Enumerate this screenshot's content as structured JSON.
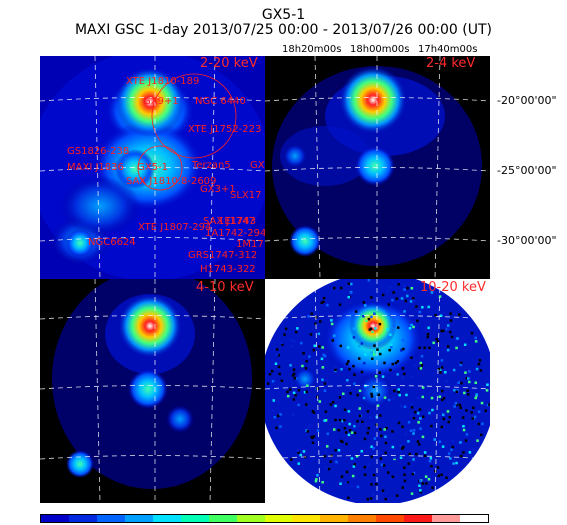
{
  "header": {
    "title": "GX5-1",
    "subtitle": "MAXI GSC 1-day 2013/07/25 00:00 - 2013/07/26 00:00 (UT)"
  },
  "axes": {
    "ra_labels": [
      "18h20m00s",
      "18h00m00s",
      "17h40m00s"
    ],
    "dec_labels": [
      "-20°00'00\"",
      "-25°00'00\"",
      "-30°00'00\""
    ]
  },
  "panels": [
    {
      "band": "2-20 keV"
    },
    {
      "band": "2-4 keV"
    },
    {
      "band": "4-10 keV"
    },
    {
      "band": "10-20 keV"
    }
  ],
  "sources": [
    "XTE J1810-189",
    "GX9+1",
    "NGC 6440",
    "XTE J1752-223",
    "GS1826-238",
    "MAXI J1836",
    "GX5-1",
    "Terzan5",
    "GX",
    "SAX J1810.8-2609",
    "GX3+1",
    "SLX17",
    "XTE J1807-294",
    "1A1742-294",
    "SAX J1747",
    "1E1743",
    "NGC6624",
    "GRS1747-312",
    "H1743-322",
    "1M17"
  ],
  "colorbar": {
    "colors": [
      "#0000c8",
      "#0028e0",
      "#0064ff",
      "#00a0ff",
      "#00e0ff",
      "#00ffb4",
      "#40ff60",
      "#a0ff20",
      "#e0ff00",
      "#ffe600",
      "#ffb400",
      "#ff8000",
      "#ff4a00",
      "#ff1a1a",
      "#ff9a9a",
      "#ffffff"
    ]
  }
}
